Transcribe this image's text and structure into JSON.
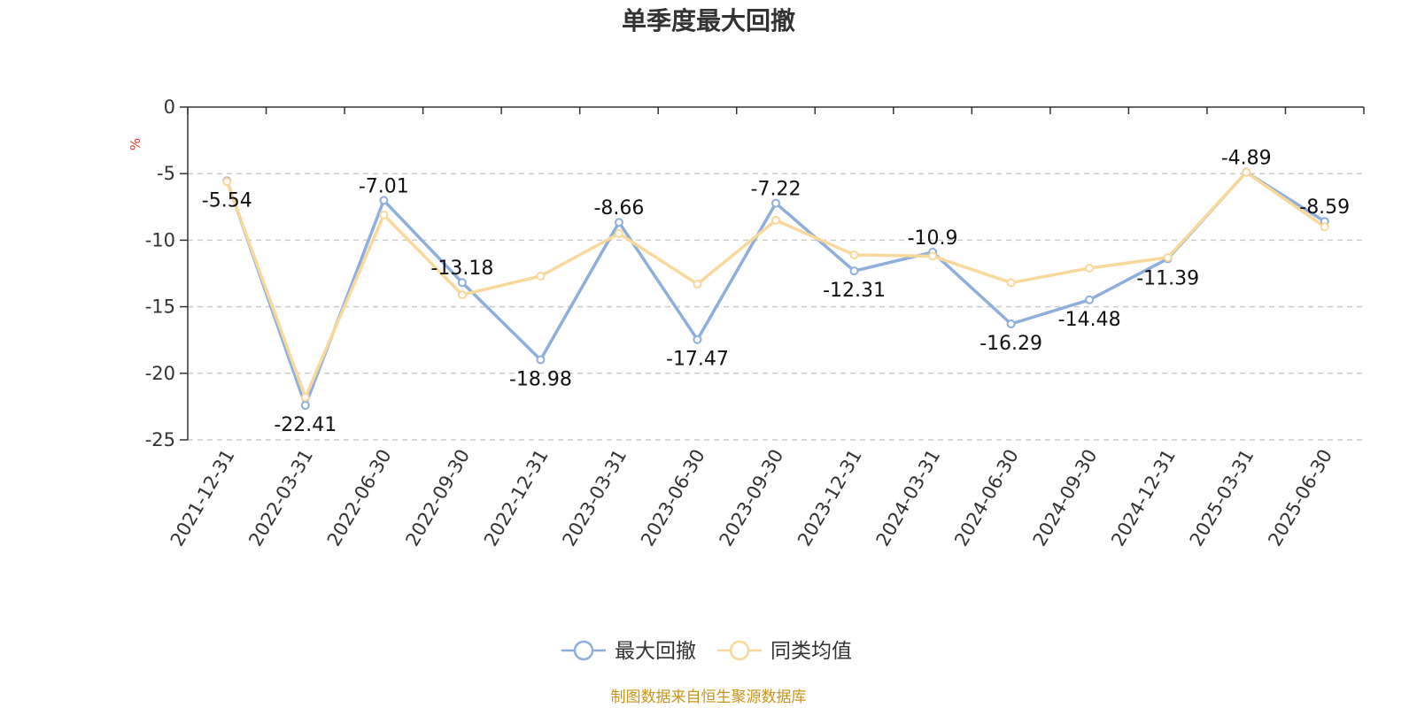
{
  "colors": {
    "max_drawdown": "#8eaedb",
    "category_avg": "#f9d89c",
    "unit": "#e8352b",
    "source": "#c8941a",
    "axis": "#333333",
    "grid": "#cccccc"
  },
  "legend_placement": "bottom-center",
  "source": "制图数据来自恒生聚源数据库",
  "chart_data": {
    "type": "line",
    "title": "单季度最大回撤",
    "ylabel": "%",
    "xlabel": "",
    "ylim": [
      -25,
      0
    ],
    "yticks": [
      0,
      -5,
      -10,
      -15,
      -20,
      -25
    ],
    "grid": "horizontal-dashed",
    "categories": [
      "2021-12-31",
      "2022-03-31",
      "2022-06-30",
      "2022-09-30",
      "2022-12-31",
      "2023-03-31",
      "2023-06-30",
      "2023-09-30",
      "2023-12-31",
      "2024-03-31",
      "2024-06-30",
      "2024-09-30",
      "2024-12-31",
      "2025-03-31",
      "2025-06-30"
    ],
    "series": [
      {
        "name": "最大回撤",
        "color": "#8eaedb",
        "values": [
          -5.54,
          -22.41,
          -7.01,
          -13.18,
          -18.98,
          -8.66,
          -17.47,
          -7.22,
          -12.31,
          -10.9,
          -16.29,
          -14.48,
          -11.39,
          -4.89,
          -8.59
        ],
        "labels": [
          "-5.54",
          "-22.41",
          "-7.01",
          "-13.18",
          "-18.98",
          "-8.66",
          "-17.47",
          "-7.22",
          "-12.31",
          "-10.9",
          "-16.29",
          "-14.48",
          "-11.39",
          "-4.89",
          "-8.59"
        ]
      },
      {
        "name": "同类均值",
        "color": "#f9d89c",
        "values": [
          -5.6,
          -21.8,
          -8.1,
          -14.1,
          -12.7,
          -9.5,
          -13.3,
          -8.5,
          -11.1,
          -11.2,
          -13.2,
          -12.1,
          -11.3,
          -4.9,
          -9.0
        ]
      }
    ]
  }
}
